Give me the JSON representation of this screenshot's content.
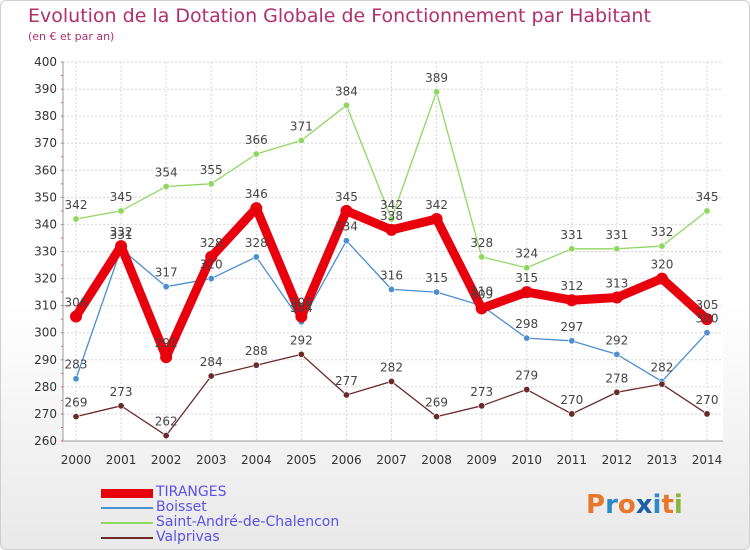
{
  "title": "Evolution de la Dotation Globale de Fonctionnement par Habitant",
  "subtitle": "(en € et par an)",
  "logo": {
    "letters": [
      "P",
      "r",
      "o",
      "x",
      "i",
      "t",
      "i"
    ],
    "colors": [
      "#e8762b",
      "#2f89c5",
      "#e8762b",
      "#1f5fa8",
      "#2f89c5",
      "#e8762b",
      "#8ab43a"
    ]
  },
  "chart_data": {
    "type": "line",
    "title": "Evolution de la Dotation Globale de Fonctionnement par Habitant",
    "subtitle": "(en € et par an)",
    "x": [
      "2000",
      "2001",
      "2002",
      "2003",
      "2004",
      "2005",
      "2006",
      "2007",
      "2008",
      "2009",
      "2010",
      "2011",
      "2012",
      "2013",
      "2014"
    ],
    "ylim": [
      260,
      400
    ],
    "yticks": [
      "260",
      "270",
      "280",
      "290",
      "300",
      "310",
      "320",
      "330",
      "340",
      "350",
      "360",
      "370",
      "380",
      "390",
      "400"
    ],
    "grid": true,
    "legend_position": "bottom-left",
    "series": [
      {
        "name": "TIRANGES",
        "color": "#e8000d",
        "values": [
          306,
          332,
          291,
          328,
          346,
          306,
          345,
          338,
          342,
          309,
          315,
          312,
          313,
          320,
          305
        ],
        "labels": [
          "306",
          "332",
          "291",
          "328",
          "346",
          "306",
          "345",
          "338",
          "342",
          "309",
          "315",
          "312",
          "313",
          "320",
          "305"
        ]
      },
      {
        "name": "Boisset",
        "color": "#4a8fd0",
        "values": [
          283,
          331,
          317,
          320,
          328,
          304,
          334,
          316,
          315,
          310,
          298,
          297,
          292,
          282,
          300
        ],
        "labels": [
          "283",
          "331",
          "317",
          "320",
          "328",
          "304",
          "334",
          "316",
          "315",
          "310",
          "298",
          "297",
          "292",
          "282",
          "300"
        ]
      },
      {
        "name": "Saint-André-de-Chalencon",
        "color": "#8fd860",
        "values": [
          342,
          345,
          354,
          355,
          366,
          371,
          384,
          342,
          389,
          328,
          324,
          331,
          331,
          332,
          345
        ],
        "labels": [
          "342",
          "345",
          "354",
          "355",
          "366",
          "371",
          "384",
          "342",
          "389",
          "328",
          "324",
          "331",
          "331",
          "332",
          "345"
        ]
      },
      {
        "name": "Valprivas",
        "color": "#6b2a2a",
        "values": [
          269,
          273,
          262,
          284,
          288,
          292,
          277,
          282,
          269,
          273,
          279,
          270,
          278,
          281,
          270
        ],
        "labels": [
          "269",
          "273",
          "262",
          "284",
          "288",
          "292",
          "277",
          "282",
          "269",
          "273",
          "279",
          "270",
          "278",
          "",
          "270"
        ]
      }
    ]
  }
}
